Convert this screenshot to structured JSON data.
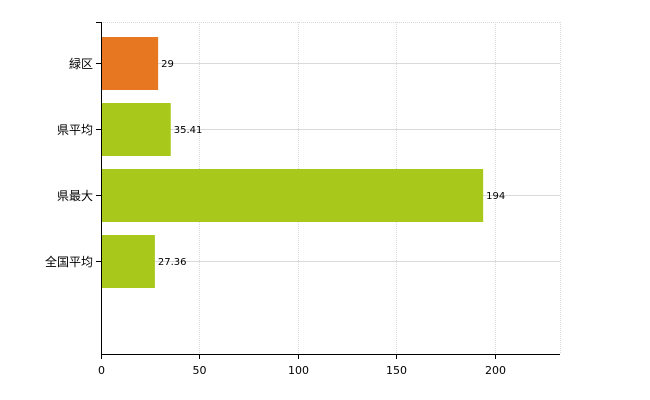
{
  "chart_data": {
    "type": "bar",
    "orientation": "horizontal",
    "categories": [
      "緑区",
      "県平均",
      "県最大",
      "全国平均"
    ],
    "values": [
      29,
      35.41,
      194,
      27.36
    ],
    "value_labels": [
      "29",
      "35.41",
      "194",
      "27.36"
    ],
    "bar_colors": [
      "#e87722",
      "#a8c81c",
      "#a8c81c",
      "#a8c81c"
    ],
    "xlim": [
      0,
      233
    ],
    "xticks": [
      0,
      50,
      100,
      150,
      200
    ],
    "grid": true,
    "legend": "none",
    "title": "",
    "xlabel": "",
    "ylabel": ""
  },
  "colors": {
    "highlight": "#e87722",
    "normal": "#a8c81c",
    "grid": "#d9d9d9",
    "axis": "#000000"
  }
}
